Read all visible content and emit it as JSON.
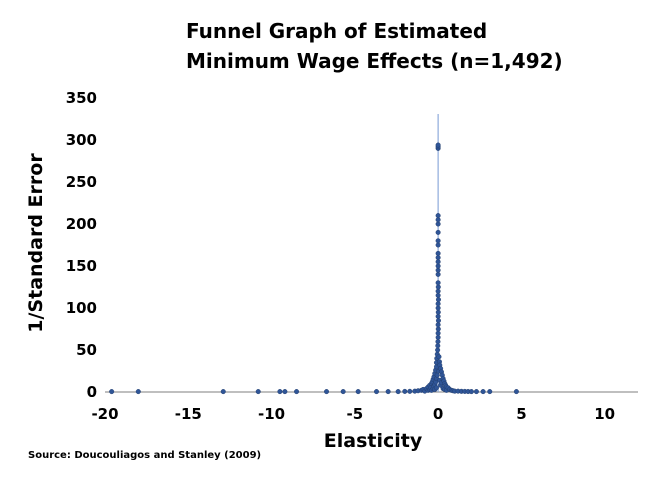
{
  "chart_data": {
    "type": "scatter",
    "title_lines": [
      "Funnel Graph of Estimated",
      "Minimum Wage Effects  (n=1,492)"
    ],
    "xlabel": "Elasticity",
    "ylabel": "1/Standard Error",
    "source": "Source: Doucouliagos and Stanley (2009)",
    "xlim": [
      -20,
      12
    ],
    "ylim": [
      0,
      350
    ],
    "xticks": [
      -20,
      -15,
      -10,
      -5,
      0,
      5,
      10
    ],
    "yticks": [
      0,
      50,
      100,
      150,
      200,
      250,
      300,
      350
    ],
    "xtick_labels": [
      "-20",
      "-15",
      "-10",
      "-5",
      "0",
      "5",
      "10"
    ],
    "ytick_labels": [
      "0",
      "50",
      "100",
      "150",
      "200",
      "250",
      "300",
      "350"
    ],
    "marker_color": "#2f5597",
    "axis_color": "#8eaadb",
    "n_points": 1492,
    "points": [
      [
        -19.6,
        0.5
      ],
      [
        -18.0,
        0.5
      ],
      [
        -12.9,
        0.5
      ],
      [
        -10.8,
        0.5
      ],
      [
        -9.5,
        0.5
      ],
      [
        -9.2,
        0.5
      ],
      [
        -8.5,
        0.5
      ],
      [
        -6.7,
        0.5
      ],
      [
        -5.7,
        0.5
      ],
      [
        -4.8,
        0.5
      ],
      [
        -3.7,
        0.5
      ],
      [
        -3.0,
        0.5
      ],
      [
        -2.4,
        0.5
      ],
      [
        -2.0,
        0.7
      ],
      [
        -1.7,
        0.8
      ],
      [
        -1.4,
        1
      ],
      [
        -1.2,
        1.5
      ],
      [
        -1.0,
        2
      ],
      [
        -0.9,
        3
      ],
      [
        -0.8,
        1
      ],
      [
        -0.7,
        4
      ],
      [
        -0.6,
        2
      ],
      [
        -0.6,
        6
      ],
      [
        -0.5,
        3
      ],
      [
        -0.5,
        8
      ],
      [
        -0.45,
        5
      ],
      [
        -0.4,
        10
      ],
      [
        -0.4,
        2
      ],
      [
        -0.35,
        12
      ],
      [
        -0.3,
        4
      ],
      [
        -0.3,
        15
      ],
      [
        -0.25,
        7
      ],
      [
        -0.25,
        18
      ],
      [
        -0.2,
        3
      ],
      [
        -0.2,
        22
      ],
      [
        -0.2,
        9
      ],
      [
        -0.15,
        26
      ],
      [
        -0.15,
        12
      ],
      [
        -0.1,
        30
      ],
      [
        -0.1,
        5
      ],
      [
        -0.1,
        35
      ],
      [
        -0.1,
        16
      ],
      [
        -0.08,
        40
      ],
      [
        -0.05,
        45
      ],
      [
        -0.05,
        20
      ],
      [
        -0.03,
        50
      ],
      [
        -0.02,
        55
      ],
      [
        -0.01,
        60
      ],
      [
        0.0,
        65
      ],
      [
        0.0,
        70
      ],
      [
        0.01,
        75
      ],
      [
        0.0,
        80
      ],
      [
        0.02,
        85
      ],
      [
        0.0,
        90
      ],
      [
        0.01,
        95
      ],
      [
        0.0,
        100
      ],
      [
        0.0,
        105
      ],
      [
        0.02,
        110
      ],
      [
        0.0,
        115
      ],
      [
        0.0,
        120
      ],
      [
        0.01,
        125
      ],
      [
        0.0,
        130
      ],
      [
        0.0,
        140
      ],
      [
        0.0,
        145
      ],
      [
        0.0,
        150
      ],
      [
        0.0,
        155
      ],
      [
        0.0,
        160
      ],
      [
        0.0,
        165
      ],
      [
        0.0,
        175
      ],
      [
        0.0,
        180
      ],
      [
        0.0,
        190
      ],
      [
        0.0,
        200
      ],
      [
        0.0,
        205
      ],
      [
        0.0,
        210
      ],
      [
        0.0,
        290
      ],
      [
        0.0,
        292
      ],
      [
        0.0,
        294
      ],
      [
        0.05,
        42
      ],
      [
        0.05,
        25
      ],
      [
        0.08,
        36
      ],
      [
        0.1,
        32
      ],
      [
        0.1,
        14
      ],
      [
        0.15,
        28
      ],
      [
        0.15,
        8
      ],
      [
        0.2,
        24
      ],
      [
        0.2,
        11
      ],
      [
        0.25,
        20
      ],
      [
        0.3,
        16
      ],
      [
        0.3,
        4
      ],
      [
        0.35,
        13
      ],
      [
        0.4,
        10
      ],
      [
        0.4,
        3
      ],
      [
        0.45,
        8
      ],
      [
        0.5,
        6
      ],
      [
        0.5,
        2
      ],
      [
        0.6,
        5
      ],
      [
        0.7,
        3
      ],
      [
        0.8,
        2
      ],
      [
        0.9,
        1.5
      ],
      [
        1.0,
        1
      ],
      [
        1.2,
        1
      ],
      [
        1.4,
        0.8
      ],
      [
        1.6,
        0.7
      ],
      [
        1.8,
        0.6
      ],
      [
        2.0,
        0.5
      ],
      [
        2.3,
        0.5
      ],
      [
        2.7,
        0.5
      ],
      [
        3.1,
        0.5
      ],
      [
        4.7,
        0.5
      ]
    ]
  }
}
